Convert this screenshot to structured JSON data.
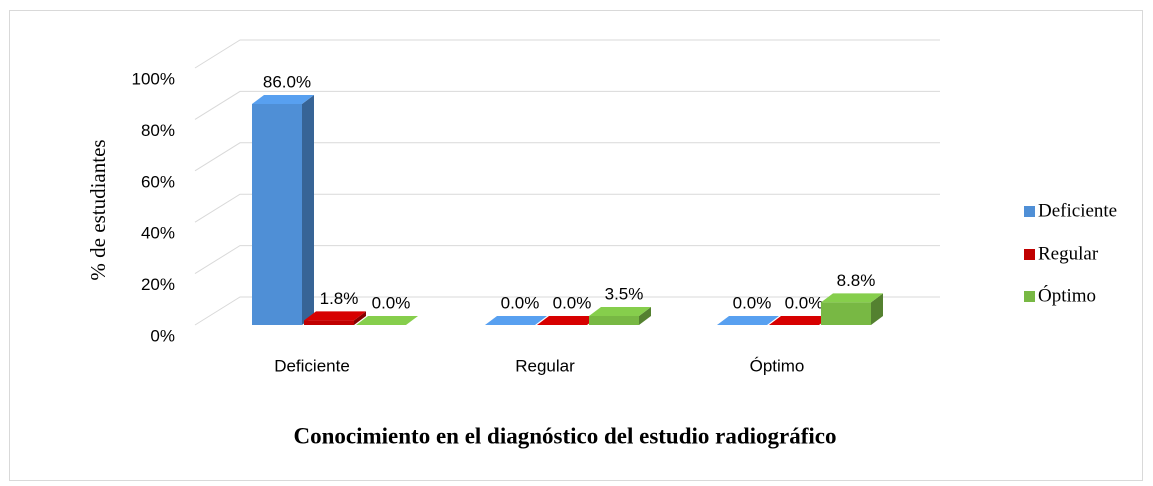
{
  "chart_data": {
    "type": "bar3d",
    "title": "Conocimiento en el diagnóstico del estudio radiográfico",
    "y_label": "% de estudiantes",
    "categories": [
      "Deficiente",
      "Regular",
      "Óptimo"
    ],
    "series": [
      {
        "name": "Deficiente",
        "color": "#4f8fd6",
        "values": [
          86.0,
          0.0,
          0.0
        ],
        "value_labels": [
          "86.0%",
          "0.0%",
          "0.0%"
        ]
      },
      {
        "name": "Regular",
        "color": "#c00000",
        "values": [
          1.8,
          0.0,
          0.0
        ],
        "value_labels": [
          "1.8%",
          "0.0%",
          "0.0%"
        ]
      },
      {
        "name": "Óptimo",
        "color": "#78b844",
        "values": [
          0.0,
          3.5,
          8.8
        ],
        "value_labels": [
          "0.0%",
          "3.5%",
          "8.8%"
        ]
      }
    ],
    "ylim": [
      0,
      100
    ],
    "yticks": [
      {
        "value": 0,
        "label": "0%"
      },
      {
        "value": 20,
        "label": "20%"
      },
      {
        "value": 40,
        "label": "40%"
      },
      {
        "value": 60,
        "label": "60%"
      },
      {
        "value": 80,
        "label": "80%"
      },
      {
        "value": 100,
        "label": "100%"
      }
    ],
    "grid": true,
    "legend": "right"
  }
}
